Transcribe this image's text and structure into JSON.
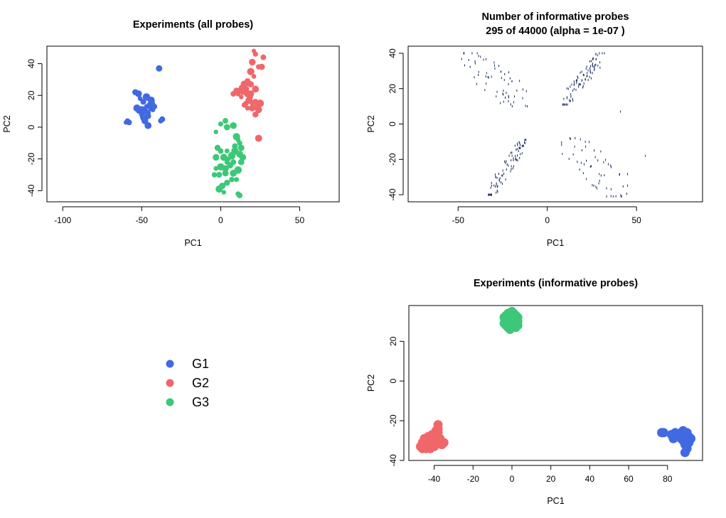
{
  "colors": {
    "G1": "#4169E1",
    "G2": "#F0676A",
    "G3": "#3CC878",
    "probes": "#14285A",
    "axis": "#000000"
  },
  "legend": {
    "items": [
      "G1",
      "G2",
      "G3"
    ]
  },
  "chart_data": [
    {
      "id": "all",
      "type": "scatter",
      "title": "Experiments (all probes)",
      "xlabel": "PC1",
      "ylabel": "PC2",
      "xlim": [
        -110,
        75
      ],
      "ylim": [
        -47,
        51
      ],
      "xticks": [
        -100,
        -50,
        0,
        50
      ],
      "yticks": [
        -40,
        -20,
        0,
        20,
        40
      ],
      "series": [
        {
          "name": "G1",
          "points": [
            [
              -60,
              3
            ],
            [
              -59,
              4
            ],
            [
              -58,
              3
            ],
            [
              -54,
              22
            ],
            [
              -52,
              21
            ],
            [
              -53,
              12
            ],
            [
              -51,
              18
            ],
            [
              -50,
              8
            ],
            [
              -49,
              16
            ],
            [
              -49,
              6
            ],
            [
              -48,
              10
            ],
            [
              -47,
              19
            ],
            [
              -47,
              13
            ],
            [
              -46,
              9
            ],
            [
              -45,
              14
            ],
            [
              -44,
              12
            ],
            [
              -44,
              17
            ],
            [
              -43,
              15
            ],
            [
              -43,
              11
            ],
            [
              -42,
              13
            ],
            [
              -46,
              7
            ],
            [
              -48,
              4
            ],
            [
              -50,
              11
            ],
            [
              -52,
              10
            ],
            [
              -38,
              4
            ],
            [
              -37,
              5
            ],
            [
              -39,
              37
            ],
            [
              -46,
              1
            ]
          ]
        },
        {
          "name": "G2",
          "points": [
            [
              21,
              48
            ],
            [
              22,
              46
            ],
            [
              27,
              44
            ],
            [
              26,
              38
            ],
            [
              20,
              41
            ],
            [
              19,
              35
            ],
            [
              21,
              32
            ],
            [
              24,
              38
            ],
            [
              17,
              29
            ],
            [
              19,
              27
            ],
            [
              22,
              24
            ],
            [
              15,
              27
            ],
            [
              13,
              25
            ],
            [
              14,
              22
            ],
            [
              12,
              23
            ],
            [
              16,
              24
            ],
            [
              17,
              21
            ],
            [
              13,
              19
            ],
            [
              11,
              21
            ],
            [
              8,
              21
            ],
            [
              10,
              23
            ],
            [
              19,
              21
            ],
            [
              18,
              17
            ],
            [
              20,
              15
            ],
            [
              16,
              15
            ],
            [
              22,
              16
            ],
            [
              23,
              13
            ],
            [
              24,
              11
            ],
            [
              25,
              15
            ],
            [
              17,
              12
            ],
            [
              15,
              14
            ],
            [
              22,
              8
            ],
            [
              20,
              12
            ],
            [
              24,
              -7
            ],
            [
              19,
              19
            ]
          ]
        },
        {
          "name": "G3",
          "points": [
            [
              -3,
              -3
            ],
            [
              0,
              2
            ],
            [
              3,
              4
            ],
            [
              4,
              0
            ],
            [
              8,
              1
            ],
            [
              10,
              -6
            ],
            [
              11,
              -8
            ],
            [
              12,
              -10
            ],
            [
              9,
              -12
            ],
            [
              13,
              -13
            ],
            [
              12,
              -17
            ],
            [
              7,
              -18
            ],
            [
              4,
              -15
            ],
            [
              0,
              -15
            ],
            [
              -2,
              -13
            ],
            [
              -3,
              -19
            ],
            [
              2,
              -19
            ],
            [
              5,
              -20
            ],
            [
              4,
              -22
            ],
            [
              8,
              -22
            ],
            [
              6,
              -24
            ],
            [
              3,
              -26
            ],
            [
              0,
              -25
            ],
            [
              -3,
              -26
            ],
            [
              -4,
              -30
            ],
            [
              -1,
              -30
            ],
            [
              3,
              -29
            ],
            [
              8,
              -29
            ],
            [
              11,
              -27
            ],
            [
              10,
              -33
            ],
            [
              7,
              -33
            ],
            [
              4,
              -35
            ],
            [
              1,
              -37
            ],
            [
              -1,
              -39
            ],
            [
              2,
              -41
            ],
            [
              11,
              -42
            ],
            [
              12,
              -43
            ],
            [
              13,
              -22
            ],
            [
              14,
              -19
            ],
            [
              9,
              -15
            ]
          ]
        }
      ]
    },
    {
      "id": "informative",
      "type": "scatter",
      "title": "Number of informative probes",
      "subtitle": "295 of 44000 (alpha = 1e-07 )",
      "xlabel": "PC1",
      "ylabel": "PC2",
      "xlim": [
        -78,
        87
      ],
      "ylim": [
        -44,
        44
      ],
      "xticks": [
        -50,
        0,
        50
      ],
      "yticks": [
        -40,
        -20,
        0,
        20,
        40
      ],
      "clusters": [
        {
          "name": "upper-left",
          "n": 62,
          "x": [
            -48,
            -11
          ],
          "y": [
            10,
            40
          ]
        },
        {
          "name": "upper-right",
          "n": 90,
          "x": [
            8,
            32
          ],
          "y": [
            11,
            40
          ]
        },
        {
          "name": "lower-left",
          "n": 85,
          "x": [
            -33,
            -12
          ],
          "y": [
            -40,
            -9
          ]
        },
        {
          "name": "lower-right",
          "n": 56,
          "x": [
            8,
            46
          ],
          "y": [
            -41,
            -8
          ]
        }
      ],
      "outliers": [
        [
          41,
          7
        ],
        [
          55,
          -18
        ]
      ]
    },
    {
      "id": "experiments-informative",
      "type": "scatter",
      "title": "Experiments (informative probes)",
      "xlabel": "PC1",
      "ylabel": "PC2",
      "xlim": [
        -53,
        98
      ],
      "ylim": [
        -40,
        38
      ],
      "xticks": [
        -40,
        -20,
        0,
        20,
        40,
        60,
        80
      ],
      "yticks": [
        -40,
        -20,
        0,
        20
      ],
      "series": [
        {
          "name": "G1",
          "points": [
            [
              77,
              -26
            ],
            [
              78,
              -26
            ],
            [
              82,
              -27
            ],
            [
              84,
              -26
            ],
            [
              83,
              -29
            ],
            [
              85,
              -28
            ],
            [
              86,
              -27
            ],
            [
              87,
              -29
            ],
            [
              88,
              -30
            ],
            [
              89,
              -28
            ],
            [
              90,
              -26
            ],
            [
              90,
              -29
            ],
            [
              91,
              -28
            ],
            [
              92,
              -29
            ],
            [
              89,
              -32
            ],
            [
              90,
              -34
            ],
            [
              89,
              -36
            ],
            [
              91,
              -31
            ],
            [
              88,
              -25
            ]
          ]
        },
        {
          "name": "G2",
          "points": [
            [
              -47,
              -33
            ],
            [
              -46,
              -32
            ],
            [
              -46,
              -34
            ],
            [
              -45,
              -31
            ],
            [
              -45,
              -33
            ],
            [
              -44,
              -34
            ],
            [
              -44,
              -32
            ],
            [
              -43,
              -33
            ],
            [
              -43,
              -30
            ],
            [
              -42,
              -31
            ],
            [
              -42,
              -33
            ],
            [
              -42,
              -34
            ],
            [
              -41,
              -32
            ],
            [
              -41,
              -30
            ],
            [
              -40,
              -33
            ],
            [
              -40,
              -31
            ],
            [
              -40,
              -29
            ],
            [
              -39,
              -30
            ],
            [
              -39,
              -32
            ],
            [
              -39,
              -28
            ],
            [
              -38,
              -26
            ],
            [
              -38,
              -24
            ],
            [
              -38,
              -22
            ],
            [
              -37,
              -29
            ],
            [
              -37,
              -31
            ],
            [
              -36,
              -32
            ],
            [
              -35,
              -31
            ],
            [
              -41,
              -27
            ],
            [
              -43,
              -28
            ],
            [
              -45,
              -29
            ],
            [
              -46,
              -31
            ],
            [
              -44,
              -30
            ],
            [
              -42,
              -29
            ],
            [
              -40,
              -27
            ],
            [
              -39,
              -25
            ],
            [
              -38,
              -28
            ]
          ]
        },
        {
          "name": "G3",
          "points": [
            [
              -4,
              32
            ],
            [
              -3,
              33
            ],
            [
              -2,
              34
            ],
            [
              -1,
              33
            ],
            [
              0,
              35
            ],
            [
              1,
              34
            ],
            [
              2,
              33
            ],
            [
              3,
              32
            ],
            [
              3,
              30
            ],
            [
              2,
              29
            ],
            [
              1,
              31
            ],
            [
              0,
              30
            ],
            [
              -1,
              31
            ],
            [
              -2,
              30
            ],
            [
              -3,
              30
            ],
            [
              -4,
              29
            ],
            [
              -3,
              28
            ],
            [
              -2,
              27
            ],
            [
              -1,
              28
            ],
            [
              0,
              27
            ],
            [
              1,
              28
            ],
            [
              2,
              27
            ],
            [
              3,
              28
            ],
            [
              -1,
              26
            ],
            [
              0,
              29
            ],
            [
              1,
              30
            ],
            [
              -2,
              32
            ],
            [
              2,
              31
            ],
            [
              -3,
              31
            ],
            [
              0,
              32
            ],
            [
              1,
              33
            ],
            [
              -1,
              29
            ]
          ]
        }
      ]
    }
  ]
}
